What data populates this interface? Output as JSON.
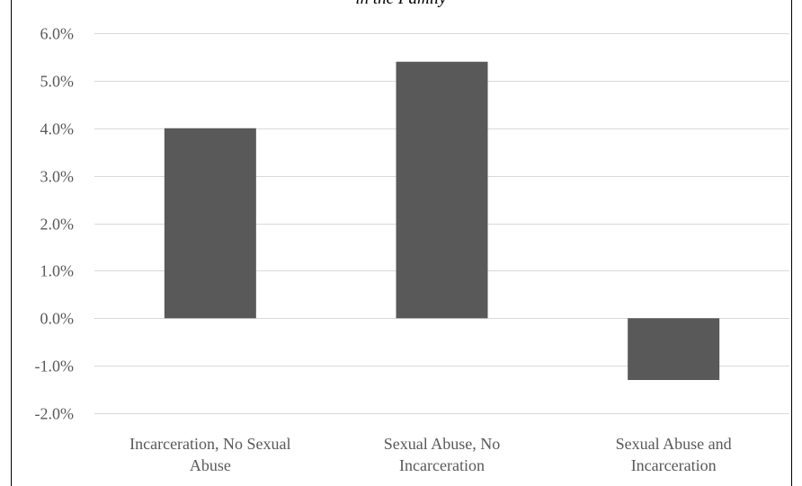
{
  "chart_data": {
    "type": "bar",
    "title": "in the Family",
    "categories": [
      [
        "Incarceration, No Sexual",
        "Abuse"
      ],
      [
        "Sexual Abuse, No",
        "Incarceration"
      ],
      [
        "Sexual Abuse and",
        "Incarceration"
      ]
    ],
    "values": [
      4.0,
      5.4,
      -1.3
    ],
    "ylim": [
      -2.0,
      6.0
    ],
    "ytick_values": [
      6.0,
      5.0,
      4.0,
      3.0,
      2.0,
      1.0,
      0.0,
      -1.0,
      -2.0
    ],
    "yticks": [
      "6.0%",
      "5.0%",
      "4.0%",
      "3.0%",
      "2.0%",
      "1.0%",
      "0.0%",
      "-1.0%",
      "-2.0%"
    ],
    "xlabel": "",
    "ylabel": "",
    "grid": true,
    "bar_color": "#595959",
    "grid_color": "#d9d9d9",
    "text_color": "#595959"
  }
}
